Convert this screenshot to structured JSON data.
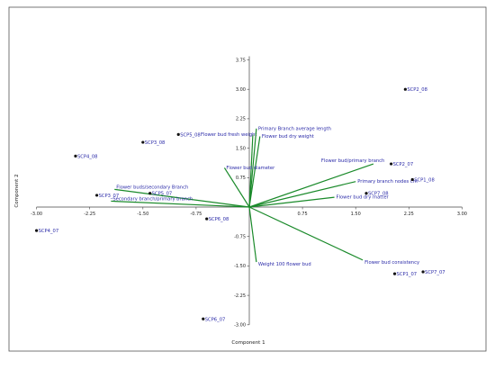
{
  "chart_data": {
    "type": "scatter",
    "title": "",
    "xlabel": "Component 1",
    "ylabel": "Component 2",
    "xlim": [
      -3.0,
      3.0
    ],
    "ylim": [
      -3.0,
      3.75
    ],
    "grid": false,
    "x_ticks": [
      "-3.00",
      "-2.25",
      "-1.50",
      "-0.75",
      "0.75",
      "1.50",
      "2.25",
      "3.00"
    ],
    "y_ticks": [
      "3.75",
      "3.00",
      "2.25",
      "1.50",
      "0.75",
      "-0.75",
      "-1.50",
      "-2.25",
      "-3.00"
    ],
    "colors": {
      "points": "#111111",
      "labels": "#2a2aa8",
      "loadings": "#1a8a2a",
      "frame": "#555555",
      "axes": "#444444"
    },
    "points": [
      {
        "label": "SCP2_08",
        "x": 2.2,
        "y": 3.0
      },
      {
        "label": "SCP2_07",
        "x": 2.0,
        "y": 1.1
      },
      {
        "label": "SCP1_08",
        "x": 2.3,
        "y": 0.7
      },
      {
        "label": "SCP7_08",
        "x": 1.65,
        "y": 0.35
      },
      {
        "label": "SCP1_07",
        "x": 2.05,
        "y": -1.7
      },
      {
        "label": "SCP7_07",
        "x": 2.45,
        "y": -1.65
      },
      {
        "label": "SCP5_08",
        "x": -1.0,
        "y": 1.85
      },
      {
        "label": "SCP3_08",
        "x": -1.5,
        "y": 1.65
      },
      {
        "label": "SCP4_08",
        "x": -2.45,
        "y": 1.3
      },
      {
        "label": "SCP3_07",
        "x": -2.15,
        "y": 0.3
      },
      {
        "label": "SCP5_07",
        "x": -1.4,
        "y": 0.35
      },
      {
        "label": "SCP4_07",
        "x": -3.0,
        "y": -0.6
      },
      {
        "label": "SCP6_08",
        "x": -0.6,
        "y": -0.3
      },
      {
        "label": "SCP6_07",
        "x": -0.65,
        "y": -2.85
      }
    ],
    "loadings": [
      {
        "label": "Flower bud fresh weight",
        "x": 0.05,
        "y": 1.85
      },
      {
        "label": "Primary Branch average length",
        "x": 0.1,
        "y": 2.0
      },
      {
        "label": "Flower bud dry weight",
        "x": 0.15,
        "y": 1.8
      },
      {
        "label": "Flower bud diameter",
        "x": -0.35,
        "y": 1.0
      },
      {
        "label": "Flower bud/primary branch",
        "x": 1.75,
        "y": 1.1
      },
      {
        "label": "Primary branch nodes cm",
        "x": 1.5,
        "y": 0.65
      },
      {
        "label": "Flower bud dry matter",
        "x": 1.2,
        "y": 0.25
      },
      {
        "label": "Flower buds/secondary Branch",
        "x": -1.9,
        "y": 0.45
      },
      {
        "label": "Secondary branch/primary branch",
        "x": -1.95,
        "y": 0.15
      },
      {
        "label": "Weight 100 flower bud",
        "x": 0.1,
        "y": -1.4
      },
      {
        "label": "Flower bud consistency",
        "x": 1.6,
        "y": -1.35
      }
    ]
  }
}
